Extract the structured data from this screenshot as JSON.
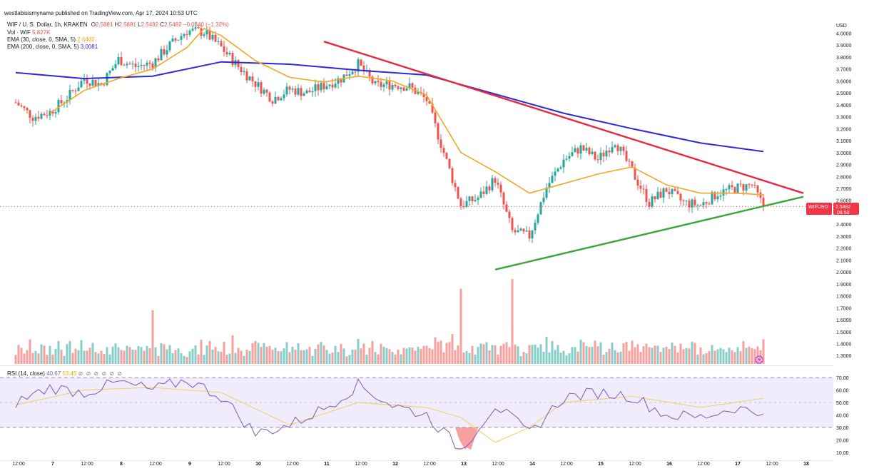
{
  "publisher": "westlabisismyname published on TradingView.com, Apr 17, 2024 10:53 UTC",
  "header": {
    "symbol_line": "WIF / U. S. Dollar, 1h, KRAKEN",
    "ohlc": {
      "o_label": "O",
      "o": "2.5881",
      "h_label": "H",
      "h": "2.5881",
      "l_label": "L",
      "l": "2.5482",
      "c_label": "C",
      "c": "2.5482",
      "change": "−0.0340 (−1.32%)"
    },
    "vol_label": "Vol · WIF",
    "vol_value": "5.827K",
    "ema30_label": "EMA (30, close, 0, SMA, 5)",
    "ema30_value": "2.6465",
    "ema200_label": "EMA (200, close, 0, SMA, 5)",
    "ema200_value": "3.0081",
    "rsi_label": "RSI (14, close)",
    "rsi_value": "40.67",
    "rsi_ma_value": "53.45"
  },
  "price_axis": {
    "currency": "USD",
    "ticks": [
      "4.0000",
      "3.9000",
      "3.8000",
      "3.7000",
      "3.6000",
      "3.5000",
      "3.4000",
      "3.3000",
      "3.2000",
      "3.1000",
      "3.0000",
      "2.9000",
      "2.8000",
      "2.7000",
      "2.6000",
      "2.5000",
      "2.4000",
      "2.3000",
      "2.2000",
      "2.1000",
      "2.0000",
      "1.9000",
      "1.8000",
      "1.7000",
      "1.6000",
      "1.5000",
      "1.4000",
      "1.3000"
    ],
    "last_tag_symbol": "WIFUSD",
    "last_tag_price": "2.5482",
    "last_tag_countdown": "06:50"
  },
  "rsi_axis": {
    "ticks": [
      "70.00",
      "60.00",
      "50.00",
      "40.00",
      "30.00",
      "20.00",
      "10.00"
    ]
  },
  "time_axis": {
    "ticks": [
      "12:00",
      "7",
      "12:00",
      "8",
      "12:00",
      "9",
      "12:00",
      "10",
      "12:00",
      "11",
      "12:00",
      "12",
      "12:00",
      "13",
      "12:00",
      "14",
      "12:00",
      "15",
      "12:00",
      "16",
      "12:00",
      "17",
      "12:00",
      "18"
    ]
  },
  "colors": {
    "up": "#26a69a",
    "down": "#ef5350",
    "ema30": "#f5a623",
    "ema200": "#2a2ad8",
    "resistance": "#e8283c",
    "support": "#3aa63a",
    "rsi": "#7e57c2",
    "rsi_ma": "#f0d060",
    "rsi_band": "#f1ecfb",
    "tag": "#f23645",
    "icon": "#b043e0"
  },
  "chart_data": [
    {
      "type": "candlestick",
      "title": "WIF / U. S. Dollar, 1h, KRAKEN",
      "ylabel": "USD",
      "ylim": [
        1.22,
        4.07
      ],
      "close_path": [
        [
          "2024-04-06 12:00",
          3.42
        ],
        [
          "2024-04-06 18:00",
          3.3
        ],
        [
          "2024-04-07 00:00",
          3.34
        ],
        [
          "2024-04-07 06:00",
          3.46
        ],
        [
          "2024-04-07 12:00",
          3.62
        ],
        [
          "2024-04-07 18:00",
          3.57
        ],
        [
          "2024-04-08 00:00",
          3.78
        ],
        [
          "2024-04-08 06:00",
          3.72
        ],
        [
          "2024-04-08 12:00",
          3.75
        ],
        [
          "2024-04-08 18:00",
          3.9
        ],
        [
          "2024-04-09 00:00",
          4.02
        ],
        [
          "2024-04-09 06:00",
          4.01
        ],
        [
          "2024-04-09 12:00",
          3.88
        ],
        [
          "2024-04-09 18:00",
          3.72
        ],
        [
          "2024-04-10 00:00",
          3.58
        ],
        [
          "2024-04-10 06:00",
          3.45
        ],
        [
          "2024-04-10 12:00",
          3.53
        ],
        [
          "2024-04-10 18:00",
          3.5
        ],
        [
          "2024-04-11 00:00",
          3.56
        ],
        [
          "2024-04-11 06:00",
          3.62
        ],
        [
          "2024-04-11 12:00",
          3.74
        ],
        [
          "2024-04-11 18:00",
          3.56
        ],
        [
          "2024-04-12 00:00",
          3.57
        ],
        [
          "2024-04-12 06:00",
          3.55
        ],
        [
          "2024-04-12 12:00",
          3.44
        ],
        [
          "2024-04-12 18:00",
          3.0
        ],
        [
          "2024-04-13 00:00",
          2.56
        ],
        [
          "2024-04-13 06:00",
          2.62
        ],
        [
          "2024-04-13 12:00",
          2.78
        ],
        [
          "2024-04-13 18:00",
          2.34
        ],
        [
          "2024-04-14 00:00",
          2.3
        ],
        [
          "2024-04-14 06:00",
          2.71
        ],
        [
          "2024-04-14 12:00",
          2.94
        ],
        [
          "2024-04-14 18:00",
          3.04
        ],
        [
          "2024-04-15 00:00",
          2.94
        ],
        [
          "2024-04-15 06:00",
          3.1
        ],
        [
          "2024-04-15 12:00",
          2.84
        ],
        [
          "2024-04-15 18:00",
          2.58
        ],
        [
          "2024-04-16 00:00",
          2.69
        ],
        [
          "2024-04-16 06:00",
          2.58
        ],
        [
          "2024-04-16 12:00",
          2.56
        ],
        [
          "2024-04-16 18:00",
          2.66
        ],
        [
          "2024-04-17 00:00",
          2.7
        ],
        [
          "2024-04-17 06:00",
          2.73
        ],
        [
          "2024-04-17 10:00",
          2.5482
        ]
      ],
      "series": [
        {
          "name": "EMA (30, close, 0, SMA, 5)",
          "points": [
            [
              "2024-04-07 00:00",
              3.33
            ],
            [
              "2024-04-07 12:00",
              3.52
            ],
            [
              "2024-04-08 00:00",
              3.62
            ],
            [
              "2024-04-08 12:00",
              3.7
            ],
            [
              "2024-04-09 00:00",
              3.88
            ],
            [
              "2024-04-09 06:00",
              4.04
            ],
            [
              "2024-04-09 12:00",
              3.98
            ],
            [
              "2024-04-10 00:00",
              3.77
            ],
            [
              "2024-04-10 12:00",
              3.63
            ],
            [
              "2024-04-11 00:00",
              3.59
            ],
            [
              "2024-04-11 12:00",
              3.64
            ],
            [
              "2024-04-12 00:00",
              3.6
            ],
            [
              "2024-04-12 12:00",
              3.48
            ],
            [
              "2024-04-13 00:00",
              3.0
            ],
            [
              "2024-04-13 12:00",
              2.84
            ],
            [
              "2024-04-14 00:00",
              2.66
            ],
            [
              "2024-04-14 12:00",
              2.74
            ],
            [
              "2024-04-15 00:00",
              2.82
            ],
            [
              "2024-04-15 12:00",
              2.88
            ],
            [
              "2024-04-16 00:00",
              2.73
            ],
            [
              "2024-04-16 12:00",
              2.66
            ],
            [
              "2024-04-17 00:00",
              2.66
            ],
            [
              "2024-04-17 10:00",
              2.6465
            ]
          ]
        },
        {
          "name": "EMA (200, close, 0, SMA, 5)",
          "points": [
            [
              "2024-04-06 12:00",
              3.67
            ],
            [
              "2024-04-07 12:00",
              3.62
            ],
            [
              "2024-04-08 12:00",
              3.64
            ],
            [
              "2024-04-09 12:00",
              3.76
            ],
            [
              "2024-04-10 12:00",
              3.74
            ],
            [
              "2024-04-11 12:00",
              3.69
            ],
            [
              "2024-04-12 12:00",
              3.65
            ],
            [
              "2024-04-13 12:00",
              3.49
            ],
            [
              "2024-04-14 12:00",
              3.33
            ],
            [
              "2024-04-15 12:00",
              3.2
            ],
            [
              "2024-04-16 12:00",
              3.08
            ],
            [
              "2024-04-17 10:00",
              3.0081
            ]
          ]
        },
        {
          "name": "resistance trendline",
          "points": [
            [
              "2024-04-11 00:00",
              3.93
            ],
            [
              "2024-04-18 00:00",
              2.66
            ]
          ]
        },
        {
          "name": "support trendline",
          "points": [
            [
              "2024-04-13 12:00",
              2.02
            ],
            [
              "2024-04-18 00:00",
              2.63
            ]
          ]
        }
      ],
      "volume_peaks": [
        [
          "2024-04-13 00:00",
          1.86
        ],
        [
          "2024-04-13 18:00",
          1.94
        ],
        [
          "2024-04-08 12:00",
          1.68
        ]
      ]
    },
    {
      "type": "line",
      "title": "RSI (14, close)",
      "ylim": [
        5,
        75
      ],
      "series": [
        {
          "name": "RSI",
          "points": [
            [
              "2024-04-06 12:00",
              50
            ],
            [
              "2024-04-07 00:00",
              62
            ],
            [
              "2024-04-07 12:00",
              58
            ],
            [
              "2024-04-08 00:00",
              66
            ],
            [
              "2024-04-08 12:00",
              60
            ],
            [
              "2024-04-09 00:00",
              68
            ],
            [
              "2024-04-09 12:00",
              55
            ],
            [
              "2024-04-10 00:00",
              25
            ],
            [
              "2024-04-10 12:00",
              32
            ],
            [
              "2024-04-11 00:00",
              45
            ],
            [
              "2024-04-11 12:00",
              64
            ],
            [
              "2024-04-12 00:00",
              48
            ],
            [
              "2024-04-12 12:00",
              40
            ],
            [
              "2024-04-13 00:00",
              12
            ],
            [
              "2024-04-13 12:00",
              48
            ],
            [
              "2024-04-14 00:00",
              25
            ],
            [
              "2024-04-14 12:00",
              54
            ],
            [
              "2024-04-15 00:00",
              58
            ],
            [
              "2024-04-15 12:00",
              55
            ],
            [
              "2024-04-16 00:00",
              40
            ],
            [
              "2024-04-16 12:00",
              38
            ],
            [
              "2024-04-17 00:00",
              46
            ],
            [
              "2024-04-17 10:00",
              40.67
            ]
          ]
        },
        {
          "name": "RSI-based MA",
          "points": [
            [
              "2024-04-06 12:00",
              48
            ],
            [
              "2024-04-07 12:00",
              60
            ],
            [
              "2024-04-08 12:00",
              62
            ],
            [
              "2024-04-09 12:00",
              58
            ],
            [
              "2024-04-10 12:00",
              32
            ],
            [
              "2024-04-11 12:00",
              50
            ],
            [
              "2024-04-12 12:00",
              46
            ],
            [
              "2024-04-13 00:00",
              38
            ],
            [
              "2024-04-13 12:00",
              18
            ],
            [
              "2024-04-14 00:00",
              30
            ],
            [
              "2024-04-14 12:00",
              50
            ],
            [
              "2024-04-15 12:00",
              55
            ],
            [
              "2024-04-16 12:00",
              46
            ],
            [
              "2024-04-17 10:00",
              53.45
            ]
          ]
        }
      ],
      "levels": [
        70,
        50,
        30
      ]
    }
  ]
}
